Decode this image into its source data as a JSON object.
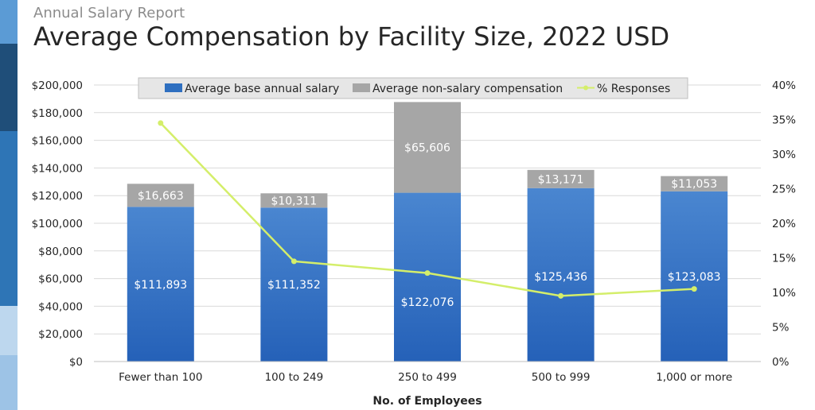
{
  "header": {
    "supertitle": "Annual Salary Report",
    "title": "Average Compensation by Facility Size, 2022 USD"
  },
  "colors": {
    "salary": "#2e6fc0",
    "non_salary": "#a6a6a6",
    "responses": "#d4ee6a",
    "stripe_dark": "#1f4e79",
    "stripe_mid": "#2e75b6",
    "stripe_light": "#bdd7ee"
  },
  "chart_data": {
    "type": "bar",
    "stacked": true,
    "categories": [
      "Fewer than 100",
      "100 to 249",
      "250 to 499",
      "500 to 999",
      "1,000 or more"
    ],
    "series": [
      {
        "name": "Average base annual salary",
        "type": "bar",
        "axis": "left",
        "values": [
          111893,
          111352,
          122076,
          125436,
          123083
        ],
        "labels": [
          "$111,893",
          "$111,352",
          "$122,076",
          "$125,436",
          "$123,083"
        ]
      },
      {
        "name": "Average non-salary compensation",
        "type": "bar",
        "axis": "left",
        "values": [
          16663,
          10311,
          65606,
          13171,
          11053
        ],
        "labels": [
          "$16,663",
          "$10,311",
          "$65,606",
          "$13,171",
          "$11,053"
        ]
      },
      {
        "name": "% Responses",
        "type": "line",
        "axis": "right",
        "values": [
          34.5,
          14.5,
          12.8,
          9.5,
          10.5
        ]
      }
    ],
    "xlabel": "No. of Employees",
    "ylim": [
      0,
      200000
    ],
    "y_ticks": [
      "$0",
      "$20,000",
      "$40,000",
      "$60,000",
      "$80,000",
      "$100,000",
      "$120,000",
      "$140,000",
      "$160,000",
      "$180,000",
      "$200,000"
    ],
    "y2lim": [
      0,
      40
    ],
    "y2_ticks": [
      "0%",
      "5%",
      "10%",
      "15%",
      "20%",
      "25%",
      "30%",
      "35%",
      "40%"
    ],
    "grid": true,
    "legend_position": "top"
  }
}
